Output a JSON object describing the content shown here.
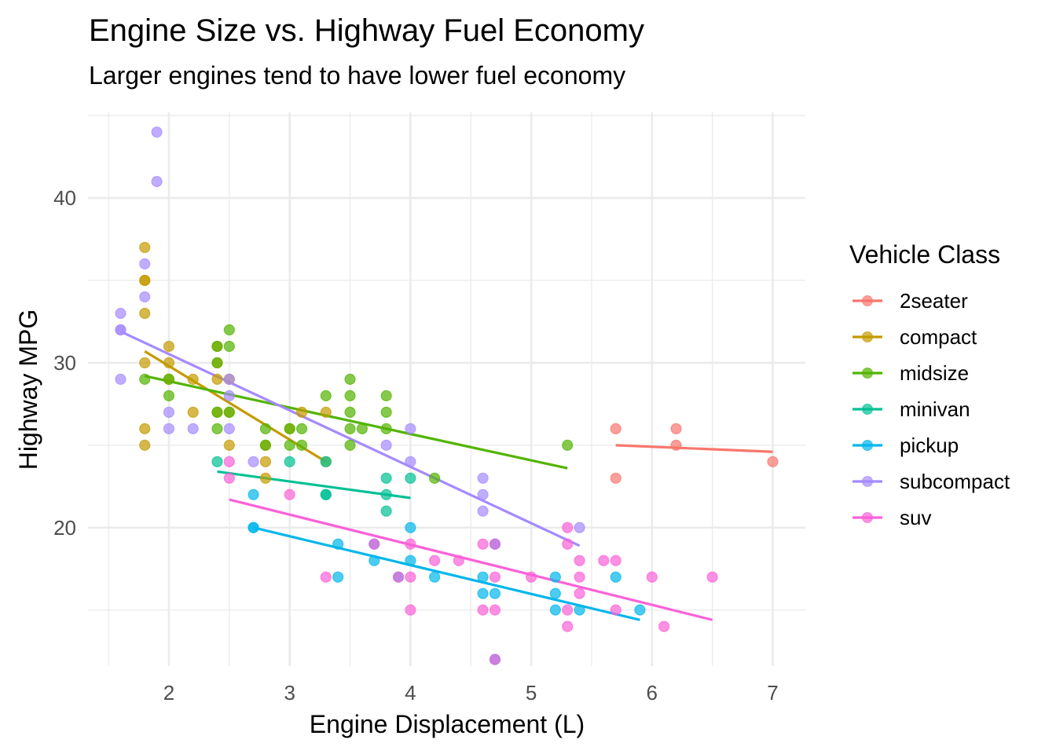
{
  "chart_data": {
    "type": "scatter",
    "title": "Engine Size vs. Highway Fuel Economy",
    "subtitle": "Larger engines tend to have lower fuel economy",
    "xlabel": "Engine Displacement (L)",
    "ylabel": "Highway MPG",
    "xlim": [
      1.33,
      7.27
    ],
    "ylim": [
      11.6,
      45.2
    ],
    "x_ticks": [
      2,
      3,
      4,
      5,
      6,
      7
    ],
    "y_ticks": [
      20,
      30,
      40
    ],
    "x_minor": [
      1.5,
      2.5,
      3.5,
      4.5,
      5.5,
      6.5
    ],
    "y_minor": [
      15,
      25,
      35,
      45
    ],
    "grid": true,
    "legend": {
      "title": "Vehicle Class",
      "position": "right"
    },
    "point_alpha": 0.7,
    "series": [
      {
        "name": "2seater",
        "color": "#F8766D",
        "points": [
          [
            5.7,
            26
          ],
          [
            5.7,
            23
          ],
          [
            6.2,
            26
          ],
          [
            6.2,
            25
          ],
          [
            7.0,
            24
          ]
        ],
        "trend": [
          [
            5.7,
            25.0
          ],
          [
            7.0,
            24.6
          ]
        ]
      },
      {
        "name": "compact",
        "color": "#C49A00",
        "points": [
          [
            1.8,
            37
          ],
          [
            1.8,
            35
          ],
          [
            1.8,
            35
          ],
          [
            1.8,
            33
          ],
          [
            1.8,
            30
          ],
          [
            1.8,
            26
          ],
          [
            1.8,
            25
          ],
          [
            2.0,
            31
          ],
          [
            2.0,
            30
          ],
          [
            2.0,
            29
          ],
          [
            2.2,
            29
          ],
          [
            2.2,
            27
          ],
          [
            2.4,
            31
          ],
          [
            2.4,
            30
          ],
          [
            2.4,
            29
          ],
          [
            2.4,
            27
          ],
          [
            2.5,
            29
          ],
          [
            2.5,
            27
          ],
          [
            2.5,
            25
          ],
          [
            2.8,
            25
          ],
          [
            2.8,
            24
          ],
          [
            2.8,
            23
          ],
          [
            3.0,
            26
          ],
          [
            3.1,
            27
          ],
          [
            3.3,
            27
          ],
          [
            3.3,
            24
          ]
        ],
        "trend": [
          [
            1.8,
            30.7
          ],
          [
            3.3,
            24.0
          ]
        ]
      },
      {
        "name": "midsize",
        "color": "#53B400",
        "points": [
          [
            1.8,
            29
          ],
          [
            2.0,
            29
          ],
          [
            2.0,
            28
          ],
          [
            2.4,
            31
          ],
          [
            2.4,
            30
          ],
          [
            2.4,
            27
          ],
          [
            2.4,
            26
          ],
          [
            2.5,
            32
          ],
          [
            2.5,
            31
          ],
          [
            2.5,
            27
          ],
          [
            2.8,
            26
          ],
          [
            2.8,
            25
          ],
          [
            3.0,
            25
          ],
          [
            3.0,
            26
          ],
          [
            3.1,
            26
          ],
          [
            3.1,
            25
          ],
          [
            3.3,
            28
          ],
          [
            3.5,
            29
          ],
          [
            3.5,
            28
          ],
          [
            3.5,
            27
          ],
          [
            3.5,
            26
          ],
          [
            3.5,
            25
          ],
          [
            3.6,
            26
          ],
          [
            3.8,
            28
          ],
          [
            3.8,
            27
          ],
          [
            3.8,
            26
          ],
          [
            4.2,
            23
          ],
          [
            5.3,
            25
          ]
        ],
        "trend": [
          [
            1.8,
            29.2
          ],
          [
            5.3,
            23.6
          ]
        ]
      },
      {
        "name": "minivan",
        "color": "#00C094",
        "points": [
          [
            2.4,
            24
          ],
          [
            3.0,
            24
          ],
          [
            3.3,
            24
          ],
          [
            3.3,
            22
          ],
          [
            3.3,
            22
          ],
          [
            3.8,
            23
          ],
          [
            3.8,
            22
          ],
          [
            3.8,
            21
          ],
          [
            4.0,
            23
          ]
        ],
        "trend": [
          [
            2.4,
            23.4
          ],
          [
            4.0,
            21.8
          ]
        ]
      },
      {
        "name": "pickup",
        "color": "#00B6EB",
        "points": [
          [
            2.7,
            22
          ],
          [
            2.7,
            20
          ],
          [
            2.7,
            20
          ],
          [
            3.4,
            19
          ],
          [
            3.4,
            17
          ],
          [
            3.7,
            19
          ],
          [
            3.7,
            18
          ],
          [
            3.9,
            17
          ],
          [
            4.0,
            20
          ],
          [
            4.0,
            18
          ],
          [
            4.2,
            17
          ],
          [
            4.6,
            17
          ],
          [
            4.6,
            16
          ],
          [
            4.7,
            16
          ],
          [
            4.7,
            19
          ],
          [
            4.7,
            12
          ],
          [
            5.2,
            17
          ],
          [
            5.2,
            16
          ],
          [
            5.2,
            15
          ],
          [
            5.4,
            15
          ],
          [
            5.7,
            17
          ],
          [
            5.9,
            15
          ]
        ],
        "trend": [
          [
            2.7,
            20.0
          ],
          [
            5.9,
            14.4
          ]
        ]
      },
      {
        "name": "subcompact",
        "color": "#A58AFF",
        "points": [
          [
            1.6,
            33
          ],
          [
            1.6,
            32
          ],
          [
            1.6,
            32
          ],
          [
            1.6,
            29
          ],
          [
            1.8,
            36
          ],
          [
            1.8,
            34
          ],
          [
            1.9,
            44
          ],
          [
            1.9,
            41
          ],
          [
            2.0,
            27
          ],
          [
            2.0,
            26
          ],
          [
            2.2,
            26
          ],
          [
            2.5,
            29
          ],
          [
            2.5,
            28
          ],
          [
            2.5,
            26
          ],
          [
            2.7,
            24
          ],
          [
            3.8,
            25
          ],
          [
            4.0,
            26
          ],
          [
            4.0,
            24
          ],
          [
            4.6,
            23
          ],
          [
            4.6,
            22
          ],
          [
            4.6,
            21
          ],
          [
            5.4,
            20
          ]
        ],
        "trend": [
          [
            1.6,
            31.9
          ],
          [
            5.4,
            18.9
          ]
        ]
      },
      {
        "name": "suv",
        "color": "#FB61D7",
        "points": [
          [
            2.5,
            24
          ],
          [
            2.5,
            23
          ],
          [
            3.0,
            22
          ],
          [
            3.3,
            17
          ],
          [
            3.7,
            19
          ],
          [
            3.9,
            17
          ],
          [
            4.0,
            19
          ],
          [
            4.0,
            17
          ],
          [
            4.0,
            15
          ],
          [
            4.2,
            18
          ],
          [
            4.4,
            18
          ],
          [
            4.6,
            19
          ],
          [
            4.6,
            15
          ],
          [
            4.7,
            19
          ],
          [
            4.7,
            17
          ],
          [
            4.7,
            15
          ],
          [
            4.7,
            12
          ],
          [
            5.0,
            17
          ],
          [
            5.3,
            20
          ],
          [
            5.3,
            19
          ],
          [
            5.3,
            15
          ],
          [
            5.3,
            14
          ],
          [
            5.4,
            18
          ],
          [
            5.4,
            17
          ],
          [
            5.4,
            16
          ],
          [
            5.6,
            18
          ],
          [
            5.7,
            18
          ],
          [
            5.7,
            15
          ],
          [
            6.0,
            17
          ],
          [
            6.1,
            14
          ],
          [
            6.5,
            17
          ]
        ],
        "trend": [
          [
            2.5,
            21.7
          ],
          [
            6.5,
            14.4
          ]
        ]
      }
    ]
  }
}
